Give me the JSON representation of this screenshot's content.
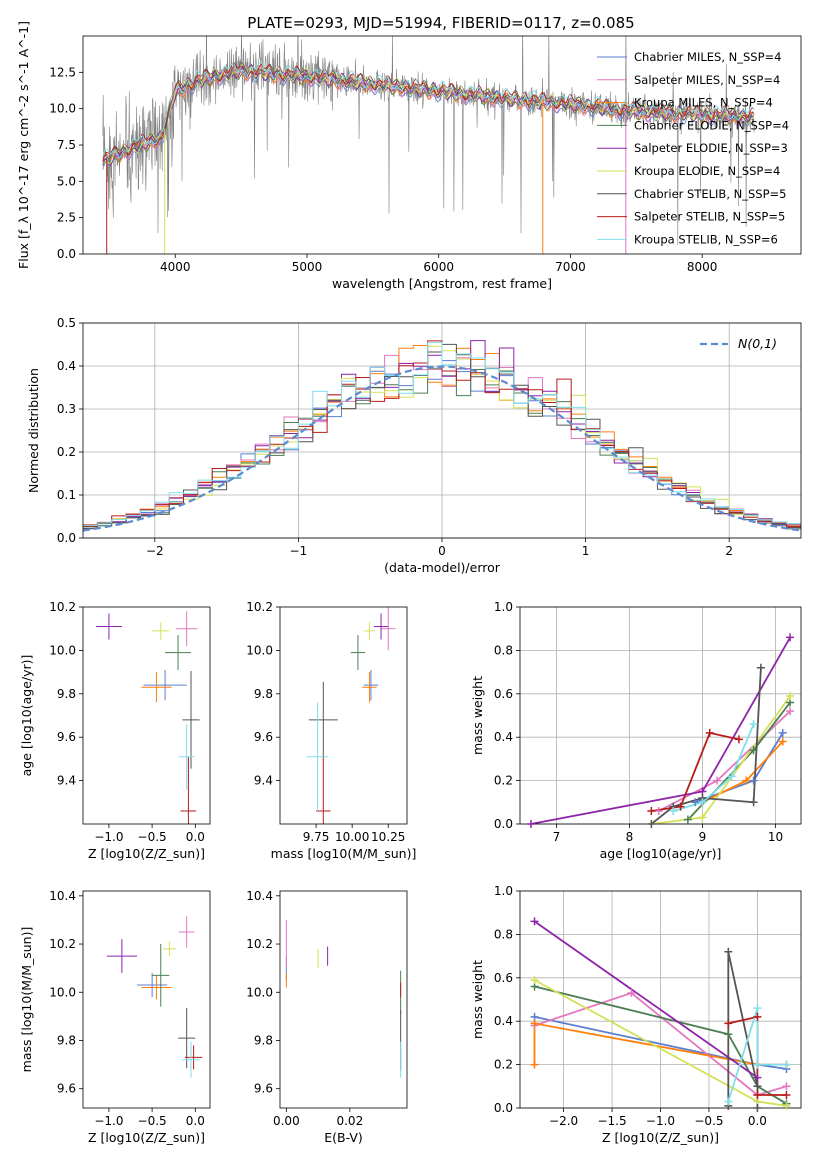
{
  "title": "PLATE=0293, MJD=51994, FIBERID=0117, z=0.085",
  "colors": {
    "grey": "#808080",
    "chabrier_miles": "#5b7fcf",
    "salpeter_miles": "#e377c2",
    "kroupa_miles": "#ff7f0e",
    "chabrier_elodie": "#4b7f52",
    "salpeter_elodie": "#8e24aa",
    "kroupa_elodie": "#d4e157",
    "chabrier_stelib": "#555555",
    "salpeter_stelib": "#b71c1c",
    "kroupa_stelib": "#80deea",
    "normal": "#5b8bd0"
  },
  "legend_labels": [
    "Chabrier MILES, N_SSP=4",
    "Salpeter MILES, N_SSP=4",
    "Kroupa MILES, N_SSP=4",
    "Chabrier ELODIE, N_SSP=4",
    "Salpeter ELODIE, N_SSP=3",
    "Kroupa ELODIE, N_SSP=4",
    "Chabrier STELIB, N_SSP=5",
    "Salpeter STELIB, N_SSP=5",
    "Kroupa STELIB, N_SSP=6"
  ],
  "chart_data": [
    {
      "id": "spectrum",
      "type": "line",
      "xlabel": "wavelength [Angstrom, rest frame]",
      "ylabel": "Flux [f_λ 10^-17 erg cm^-2 s^-1 A^-1]",
      "xlim": [
        3300,
        8750
      ],
      "ylim": [
        0,
        15
      ],
      "xticks": [
        4000,
        5000,
        6000,
        7000,
        8000
      ],
      "yticks": [
        0.0,
        2.5,
        5.0,
        7.5,
        10.0,
        12.5
      ],
      "legend": "top-right",
      "continuum_knots": [
        [
          3450,
          6.4
        ],
        [
          3700,
          7.4
        ],
        [
          3900,
          8.0
        ],
        [
          4000,
          11.2
        ],
        [
          4200,
          12.0
        ],
        [
          4500,
          12.6
        ],
        [
          5000,
          12.2
        ],
        [
          5500,
          11.7
        ],
        [
          6000,
          11.2
        ],
        [
          6500,
          10.7
        ],
        [
          7000,
          10.3
        ],
        [
          7500,
          9.8
        ],
        [
          8000,
          9.6
        ],
        [
          8400,
          9.4
        ]
      ]
    },
    {
      "id": "residuals",
      "type": "bar",
      "xlabel": "(data-model)/error",
      "ylabel": "Normed distribution",
      "xlim": [
        -2.5,
        2.5
      ],
      "ylim": [
        0,
        0.5
      ],
      "xticks": [
        -2,
        -1,
        0,
        1,
        2
      ],
      "yticks": [
        0.0,
        0.1,
        0.2,
        0.3,
        0.4,
        0.5
      ],
      "bin_width": 0.1,
      "normal_label": "N(0,1)",
      "legend": "top-right"
    },
    {
      "id": "age_vs_Z",
      "type": "scatter",
      "xlabel": "Z [log10(Z/Z_sun)]",
      "ylabel": "age  [log10(age/yr)]",
      "xlim": [
        -1.3,
        0.17
      ],
      "ylim": [
        9.2,
        10.2
      ],
      "xticks": [
        -1.0,
        -0.5,
        0.0
      ],
      "yticks": [
        9.4,
        9.6,
        9.8,
        10.0,
        10.2
      ],
      "points": [
        {
          "m": "chabrier_miles",
          "x": -0.35,
          "xe": 0.5,
          "y": 9.84,
          "ye": 0.14
        },
        {
          "m": "salpeter_miles",
          "x": -0.1,
          "xe": 0.25,
          "y": 10.1,
          "ye": 0.16
        },
        {
          "m": "kroupa_miles",
          "x": -0.45,
          "xe": 0.35,
          "y": 9.83,
          "ye": 0.14
        },
        {
          "m": "chabrier_elodie",
          "x": -0.2,
          "xe": 0.3,
          "y": 9.99,
          "ye": 0.16
        },
        {
          "m": "salpeter_elodie",
          "x": -1.0,
          "xe": 0.3,
          "y": 10.11,
          "ye": 0.12
        },
        {
          "m": "kroupa_elodie",
          "x": -0.4,
          "xe": 0.2,
          "y": 10.09,
          "ye": 0.08
        },
        {
          "m": "chabrier_stelib",
          "x": -0.05,
          "xe": 0.2,
          "y": 9.68,
          "ye": 0.45
        },
        {
          "m": "salpeter_stelib",
          "x": -0.08,
          "xe": 0.18,
          "y": 9.26,
          "ye": 0.5
        },
        {
          "m": "kroupa_stelib",
          "x": -0.1,
          "xe": 0.18,
          "y": 9.51,
          "ye": 0.3
        }
      ]
    },
    {
      "id": "age_vs_mass",
      "type": "scatter",
      "xlabel": "mass [log10(M/M_sun)]",
      "ylabel": "",
      "xlim": [
        9.5,
        10.38
      ],
      "ylim": [
        9.2,
        10.2
      ],
      "xticks": [
        9.75,
        10.0,
        10.25
      ],
      "yticks": [
        9.4,
        9.6,
        9.8,
        10.0,
        10.2
      ],
      "points": [
        {
          "m": "chabrier_miles",
          "x": 10.13,
          "xe": 0.1,
          "y": 9.84,
          "ye": 0.14
        },
        {
          "m": "salpeter_miles",
          "x": 10.25,
          "xe": 0.1,
          "y": 10.1,
          "ye": 0.2
        },
        {
          "m": "kroupa_miles",
          "x": 10.12,
          "xe": 0.1,
          "y": 9.83,
          "ye": 0.14
        },
        {
          "m": "chabrier_elodie",
          "x": 10.04,
          "xe": 0.1,
          "y": 9.99,
          "ye": 0.16
        },
        {
          "m": "salpeter_elodie",
          "x": 10.2,
          "xe": 0.1,
          "y": 10.11,
          "ye": 0.12
        },
        {
          "m": "kroupa_elodie",
          "x": 10.12,
          "xe": 0.08,
          "y": 10.09,
          "ye": 0.08
        },
        {
          "m": "chabrier_stelib",
          "x": 9.8,
          "xe": 0.2,
          "y": 9.68,
          "ye": 0.35
        },
        {
          "m": "salpeter_stelib",
          "x": 9.8,
          "xe": 0.1,
          "y": 9.26,
          "ye": 0.5
        },
        {
          "m": "kroupa_stelib",
          "x": 9.76,
          "xe": 0.15,
          "y": 9.51,
          "ye": 0.5
        }
      ]
    },
    {
      "id": "weight_vs_age",
      "type": "line",
      "xlabel": "age  [log10(age/yr)]",
      "ylabel": "mass weight",
      "xlim": [
        6.5,
        10.35
      ],
      "ylim": [
        0,
        1.0
      ],
      "xticks": [
        7,
        8,
        9,
        10
      ],
      "yticks": [
        0.0,
        0.2,
        0.4,
        0.6,
        0.8,
        1.0
      ],
      "series": [
        {
          "m": "chabrier_miles",
          "pts": [
            [
              8.9,
              0.1
            ],
            [
              9.7,
              0.2
            ],
            [
              10.1,
              0.42
            ]
          ]
        },
        {
          "m": "salpeter_miles",
          "pts": [
            [
              8.4,
              0.06
            ],
            [
              9.2,
              0.2
            ],
            [
              10.2,
              0.52
            ]
          ]
        },
        {
          "m": "kroupa_miles",
          "pts": [
            [
              9.0,
              0.1
            ],
            [
              9.6,
              0.2
            ],
            [
              10.1,
              0.38
            ]
          ]
        },
        {
          "m": "chabrier_elodie",
          "pts": [
            [
              8.8,
              0.02
            ],
            [
              9.7,
              0.34
            ],
            [
              10.2,
              0.56
            ]
          ]
        },
        {
          "m": "salpeter_elodie",
          "pts": [
            [
              6.65,
              0.0
            ],
            [
              9.0,
              0.15
            ],
            [
              10.2,
              0.86
            ]
          ]
        },
        {
          "m": "kroupa_elodie",
          "pts": [
            [
              8.3,
              0.0
            ],
            [
              9.0,
              0.03
            ],
            [
              10.2,
              0.59
            ]
          ]
        },
        {
          "m": "chabrier_stelib",
          "pts": [
            [
              8.3,
              0.0
            ],
            [
              8.6,
              0.08
            ],
            [
              9.0,
              0.12
            ],
            [
              9.7,
              0.1
            ],
            [
              9.8,
              0.72
            ]
          ]
        },
        {
          "m": "salpeter_stelib",
          "pts": [
            [
              8.3,
              0.06
            ],
            [
              8.7,
              0.08
            ],
            [
              9.1,
              0.42
            ],
            [
              9.5,
              0.39
            ]
          ]
        },
        {
          "m": "kroupa_stelib",
          "pts": [
            [
              8.6,
              0.06
            ],
            [
              9.0,
              0.1
            ],
            [
              9.4,
              0.22
            ],
            [
              9.7,
              0.46
            ]
          ]
        }
      ]
    },
    {
      "id": "mass_vs_Z",
      "type": "scatter",
      "xlabel": "Z [log10(Z/Z_sun)]",
      "ylabel": "mass [log10(M/M_sun)]",
      "xlim": [
        -1.3,
        0.17
      ],
      "ylim": [
        9.52,
        10.42
      ],
      "xticks": [
        -1.0,
        -0.5,
        0.0
      ],
      "yticks": [
        9.6,
        9.8,
        10.0,
        10.2,
        10.4
      ],
      "points": [
        {
          "m": "chabrier_miles",
          "x": -0.5,
          "xe": 0.35,
          "y": 10.03,
          "ye": 0.1
        },
        {
          "m": "salpeter_miles",
          "x": -0.1,
          "xe": 0.18,
          "y": 10.25,
          "ye": 0.13
        },
        {
          "m": "kroupa_miles",
          "x": -0.45,
          "xe": 0.35,
          "y": 10.02,
          "ye": 0.1
        },
        {
          "m": "chabrier_elodie",
          "x": -0.4,
          "xe": 0.2,
          "y": 10.07,
          "ye": 0.26
        },
        {
          "m": "salpeter_elodie",
          "x": -0.85,
          "xe": 0.35,
          "y": 10.15,
          "ye": 0.14
        },
        {
          "m": "kroupa_elodie",
          "x": -0.3,
          "xe": 0.15,
          "y": 10.18,
          "ye": 0.06
        },
        {
          "m": "chabrier_stelib",
          "x": -0.1,
          "xe": 0.2,
          "y": 9.81,
          "ye": 0.25
        },
        {
          "m": "salpeter_stelib",
          "x": -0.02,
          "xe": 0.2,
          "y": 9.73,
          "ye": 0.1
        },
        {
          "m": "kroupa_stelib",
          "x": -0.05,
          "xe": 0.2,
          "y": 9.72,
          "ye": 0.15
        }
      ]
    },
    {
      "id": "mass_vs_ebv",
      "type": "scatter",
      "xlabel": "E(B-V)",
      "ylabel": "",
      "xlim": [
        -0.002,
        0.038
      ],
      "ylim": [
        9.52,
        10.42
      ],
      "xticks": [
        0.0,
        0.02
      ],
      "yticks": [
        9.6,
        9.8,
        10.0,
        10.2,
        10.4
      ],
      "points": [
        {
          "m": "chabrier_miles",
          "x": 0.0,
          "xe": 0,
          "y": 10.1,
          "ye": 0.1
        },
        {
          "m": "salpeter_miles",
          "x": 0.0,
          "xe": 0,
          "y": 10.2,
          "ye": 0.2
        },
        {
          "m": "kroupa_miles",
          "x": 0.0,
          "xe": 0,
          "y": 10.05,
          "ye": 0.06
        },
        {
          "m": "chabrier_elodie",
          "x": 0.036,
          "xe": 0,
          "y": 10.0,
          "ye": 0.18
        },
        {
          "m": "salpeter_elodie",
          "x": 0.013,
          "xe": 0,
          "y": 10.15,
          "ye": 0.08
        },
        {
          "m": "kroupa_elodie",
          "x": 0.01,
          "xe": 0,
          "y": 10.14,
          "ye": 0.08
        },
        {
          "m": "chabrier_stelib",
          "x": 0.036,
          "xe": 0,
          "y": 9.8,
          "ye": 0.25
        },
        {
          "m": "salpeter_stelib",
          "x": 0.036,
          "xe": 0,
          "y": 10.01,
          "ye": 0.06
        },
        {
          "m": "kroupa_stelib",
          "x": 0.036,
          "xe": 0,
          "y": 9.72,
          "ye": 0.15
        }
      ]
    },
    {
      "id": "weight_vs_Z",
      "type": "line",
      "xlabel": "Z [log10(Z/Z_sun)]",
      "ylabel": "mass weight",
      "xlim": [
        -2.45,
        0.45
      ],
      "ylim": [
        0,
        1.0
      ],
      "xticks": [
        -2.0,
        -1.5,
        -1.0,
        -0.5,
        0.0
      ],
      "yticks": [
        0.0,
        0.2,
        0.4,
        0.6,
        0.8,
        1.0
      ],
      "series": [
        {
          "m": "chabrier_miles",
          "pts": [
            [
              -2.3,
              0.42
            ],
            [
              0.0,
              0.2
            ],
            [
              0.3,
              0.18
            ]
          ]
        },
        {
          "m": "salpeter_miles",
          "pts": [
            [
              -2.3,
              0.38
            ],
            [
              -1.3,
              0.53
            ],
            [
              0.0,
              0.06
            ],
            [
              0.3,
              0.1
            ]
          ]
        },
        {
          "m": "kroupa_miles",
          "pts": [
            [
              -2.3,
              0.2
            ],
            [
              -2.3,
              0.39
            ],
            [
              0.0,
              0.2
            ],
            [
              0.3,
              0.2
            ]
          ]
        },
        {
          "m": "chabrier_elodie",
          "pts": [
            [
              -2.3,
              0.56
            ],
            [
              -0.3,
              0.34
            ],
            [
              0.0,
              0.1
            ],
            [
              0.3,
              0.02
            ]
          ]
        },
        {
          "m": "salpeter_elodie",
          "pts": [
            [
              -2.3,
              0.86
            ],
            [
              0.0,
              0.14
            ]
          ]
        },
        {
          "m": "kroupa_elodie",
          "pts": [
            [
              -2.3,
              0.59
            ],
            [
              0.0,
              0.03
            ],
            [
              0.3,
              0.01
            ]
          ]
        },
        {
          "m": "chabrier_stelib",
          "pts": [
            [
              -0.3,
              0.01
            ],
            [
              -0.3,
              0.72
            ],
            [
              0.0,
              0.1
            ],
            [
              0.0,
              0.0
            ]
          ]
        },
        {
          "m": "salpeter_stelib",
          "pts": [
            [
              -0.3,
              0.39
            ],
            [
              0.0,
              0.42
            ],
            [
              0.0,
              0.06
            ],
            [
              0.3,
              0.06
            ]
          ]
        },
        {
          "m": "kroupa_stelib",
          "pts": [
            [
              -0.3,
              0.03
            ],
            [
              0.0,
              0.46
            ],
            [
              0.0,
              0.2
            ],
            [
              0.3,
              0.2
            ]
          ]
        }
      ]
    }
  ]
}
